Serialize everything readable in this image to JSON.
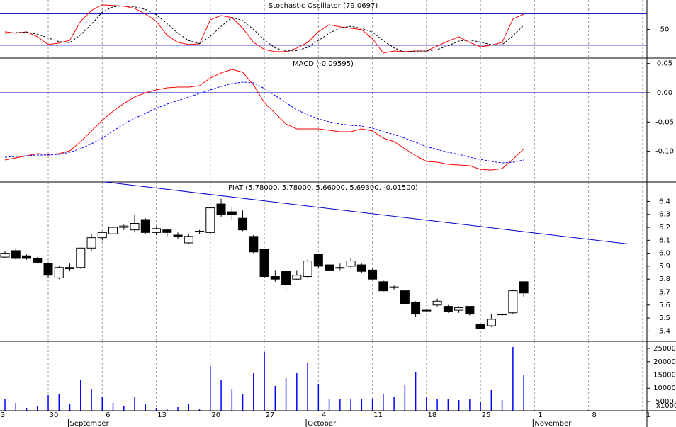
{
  "chart_data": [
    {
      "type": "line",
      "title": "Stochastic Oscillator (79.0697)",
      "ylim": [
        -4.3,
        106
      ],
      "yticks": [
        50
      ],
      "hlines": [
        20,
        80
      ],
      "series": [
        {
          "color": "#ff0000",
          "dash": false,
          "values": [
            45.6,
            42.9,
            45.6,
            36.2,
            21.4,
            24.1,
            29.5,
            65.8,
            86.1,
            96.8,
            95.5,
            94.2,
            90.1,
            79.3,
            65.8,
            38.9,
            25.4,
            21.4,
            22.7,
            68.5,
            76.6,
            72.6,
            52.4,
            25.4,
            11.9,
            7.9,
            7.9,
            14.6,
            25.4,
            45.6,
            59.1,
            55.1,
            52.4,
            49.7,
            32.2,
            5.2,
            9.2,
            7.9,
            9.2,
            9.2,
            18.7,
            28.1,
            36.2,
            25.4,
            17.3,
            20.0,
            25.4,
            69.9,
            79.1
          ]
        },
        {
          "color": "#000000",
          "dash": true,
          "values": [
            43,
            44,
            45,
            41,
            34,
            27,
            25,
            40,
            60,
            83,
            93,
            95,
            93,
            88,
            78,
            61,
            43,
            29,
            23,
            37,
            56,
            73,
            67,
            50,
            30,
            15,
            9,
            10,
            16,
            29,
            43,
            53,
            56,
            52,
            45,
            29,
            15,
            7,
            9,
            9,
            12,
            19,
            28,
            30,
            26,
            21,
            21,
            38,
            58
          ]
        }
      ]
    },
    {
      "type": "line",
      "title": "MACD (-0.09595)",
      "ylim": [
        -0.1525,
        0.0593
      ],
      "yticks": [
        0.05,
        {
          "value": 0,
          "label": "0.00"
        },
        -0.05,
        {
          "value": -0.1,
          "label": "-0.10"
        }
      ],
      "hlines": [
        0
      ],
      "series": [
        {
          "color": "#ff0000",
          "dash": false,
          "values": [
            -0.115,
            -0.1114,
            -0.1077,
            -0.1041,
            -0.1053,
            -0.1041,
            -0.0993,
            -0.0835,
            -0.0654,
            -0.0472,
            -0.0315,
            -0.0182,
            -0.0073,
            0,
            0.0048,
            0.0085,
            0.0097,
            0.0097,
            0.0121,
            0.0254,
            0.0339,
            0.04,
            0.0351,
            0.0133,
            -0.0169,
            -0.0351,
            -0.0533,
            -0.0617,
            -0.0617,
            -0.0617,
            -0.0642,
            -0.0666,
            -0.0666,
            -0.0617,
            -0.0654,
            -0.0775,
            -0.0835,
            -0.0956,
            -0.1077,
            -0.1174,
            -0.1186,
            -0.1223,
            -0.1235,
            -0.1247,
            -0.1308,
            -0.132,
            -0.1295,
            -0.1138,
            -0.096
          ]
        },
        {
          "color": "#0000ff",
          "dash": true,
          "values": [
            -0.1102,
            -0.109,
            -0.1077,
            -0.1065,
            -0.1065,
            -0.1053,
            -0.1017,
            -0.0956,
            -0.0872,
            -0.0775,
            -0.0654,
            -0.0533,
            -0.0436,
            -0.0351,
            -0.0266,
            -0.0194,
            -0.0133,
            -0.0073,
            -0.0012,
            0.0048,
            0.0109,
            0.0157,
            0.0182,
            0.0169,
            0.0073,
            -0.0048,
            -0.0169,
            -0.0291,
            -0.0375,
            -0.0448,
            -0.0496,
            -0.0533,
            -0.0557,
            -0.0569,
            -0.0605,
            -0.0666,
            -0.0714,
            -0.0775,
            -0.0847,
            -0.092,
            -0.0969,
            -0.1017,
            -0.1053,
            -0.1102,
            -0.1138,
            -0.1174,
            -0.1199,
            -0.1186,
            -0.115
          ]
        }
      ]
    },
    {
      "type": "candlestick",
      "title": "FIAT (5.78000, 5.78000, 5.66000, 5.69300, -0.01500)",
      "ylim": [
        5.32,
        6.55
      ],
      "yticks": [
        5.4,
        5.5,
        5.6,
        5.7,
        5.8,
        5.9,
        {
          "value": 6,
          "label": "6.0"
        },
        6.1,
        6.2,
        6.3,
        6.4
      ],
      "trendline": {
        "color": "#0000cc",
        "x": [
          9.25,
          57.77
        ],
        "y": [
          6.55,
          6.07
        ]
      },
      "open": [
        5.97,
        6.02,
        5.98,
        5.96,
        5.92,
        5.81,
        5.88,
        5.89,
        6.04,
        6.12,
        6.15,
        6.2,
        6.18,
        6.26,
        6.16,
        6.18,
        6.14,
        6.08,
        6.17,
        6.16,
        6.38,
        6.32,
        6.27,
        6.13,
        6.03,
        5.82,
        5.86,
        5.8,
        5.82,
        5.99,
        5.91,
        5.89,
        5.9,
        5.91,
        5.87,
        5.78,
        5.74,
        5.71,
        5.62,
        5.56,
        5.6,
        5.59,
        5.56,
        5.59,
        5.45,
        5.44,
        5.53,
        5.54,
        5.78
      ],
      "high": [
        6.02,
        6.04,
        5.99,
        5.97,
        5.93,
        5.9,
        5.92,
        6.04,
        6.15,
        6.17,
        6.23,
        6.22,
        6.3,
        6.27,
        6.2,
        6.19,
        6.16,
        6.15,
        6.18,
        6.36,
        6.42,
        6.36,
        6.33,
        6.14,
        6.03,
        5.87,
        5.86,
        5.87,
        5.95,
        5.99,
        5.92,
        5.92,
        5.96,
        5.92,
        5.88,
        5.79,
        5.75,
        5.72,
        5.63,
        5.57,
        5.65,
        5.6,
        5.59,
        5.59,
        5.45,
        5.53,
        5.54,
        5.72,
        5.78
      ],
      "low": [
        5.96,
        5.95,
        5.95,
        5.92,
        5.81,
        5.8,
        5.86,
        5.88,
        6.02,
        6.1,
        6.14,
        6.18,
        6.16,
        6.15,
        6.14,
        6.13,
        6.11,
        6.07,
        6.15,
        6.15,
        6.28,
        6.26,
        6.17,
        6,
        5.81,
        5.78,
        5.7,
        5.79,
        5.81,
        5.89,
        5.86,
        5.87,
        5.89,
        5.85,
        5.79,
        5.7,
        5.72,
        5.6,
        5.51,
        5.55,
        5.59,
        5.54,
        5.54,
        5.52,
        5.42,
        5.43,
        5.51,
        5.53,
        5.66
      ],
      "close": [
        6,
        5.96,
        5.96,
        5.93,
        5.83,
        5.89,
        5.89,
        6.04,
        6.12,
        6.16,
        6.2,
        6.21,
        6.23,
        6.16,
        6.19,
        6.16,
        6.13,
        6.13,
        6.17,
        6.35,
        6.3,
        6.3,
        6.18,
        6.01,
        5.82,
        5.8,
        5.76,
        5.83,
        5.94,
        5.9,
        5.87,
        5.89,
        5.94,
        5.86,
        5.8,
        5.71,
        5.74,
        5.61,
        5.53,
        5.56,
        5.63,
        5.55,
        5.58,
        5.53,
        5.42,
        5.49,
        5.53,
        5.71,
        5.693
      ]
    },
    {
      "type": "bar",
      "color": "#0000ff",
      "ylim": [
        1533,
        27667
      ],
      "yticks": [
        5000,
        10000,
        15000,
        20000,
        25000
      ],
      "unit_label": "x1000",
      "values": [
        5800,
        4470,
        2600,
        3130,
        7400,
        7670,
        3930,
        13270,
        9800,
        6600,
        4470,
        3400,
        6600,
        3930,
        2600,
        2330,
        2870,
        4200,
        2330,
        18330,
        13270,
        9800,
        7670,
        15670,
        23670,
        10870,
        13800,
        15670,
        19400,
        11670,
        6070,
        6070,
        6070,
        6070,
        6070,
        7930,
        6600,
        11130,
        15930,
        6600,
        6070,
        6070,
        5530,
        6070,
        5000,
        9270,
        5530,
        25530,
        15130
      ],
      "xlim": [
        -0.46,
        59.4
      ],
      "xticks": [
        {
          "value": -1,
          "label": "3"
        },
        {
          "value": 4,
          "label": "30"
        },
        {
          "value": 9,
          "label": "6"
        },
        {
          "value": 14,
          "label": "13"
        },
        {
          "value": 19,
          "label": "20"
        },
        {
          "value": 24,
          "label": "27"
        },
        {
          "value": 29,
          "label": "4"
        },
        {
          "value": 34,
          "label": "11"
        },
        {
          "value": 39,
          "label": "18"
        },
        {
          "value": 44,
          "label": "25"
        },
        {
          "value": 49,
          "label": "1"
        },
        {
          "value": 54,
          "label": "8"
        },
        {
          "value": 59,
          "label": "1"
        }
      ],
      "months": [
        {
          "value": 6,
          "label": "September"
        },
        {
          "value": 28,
          "label": "October"
        },
        {
          "value": 49,
          "label": "November"
        }
      ]
    }
  ]
}
